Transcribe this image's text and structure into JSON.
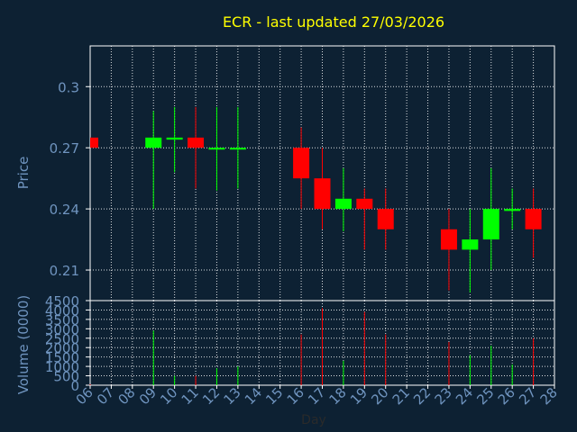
{
  "chart_data": {
    "type": "candlestick",
    "title": "ECR - last updated 27/03/2026",
    "xlabel": "Day",
    "price_panel": {
      "ylabel": "Price",
      "ylim": [
        0.195,
        0.32
      ],
      "yticks": [
        0.21,
        0.24,
        0.27,
        0.3
      ],
      "ytick_labels": [
        "0.21",
        "0.24",
        "0.27",
        "0.3"
      ]
    },
    "volume_panel": {
      "ylabel": "Volume (0000)",
      "ylim": [
        0,
        4500
      ],
      "yticks": [
        0,
        500,
        1000,
        1500,
        2000,
        2500,
        3000,
        3500,
        4000,
        4500
      ],
      "ytick_labels": [
        "0",
        "500",
        "1000",
        "1500",
        "2000",
        "2500",
        "3000",
        "3500",
        "4000",
        "4500"
      ]
    },
    "x_ticks": [
      "06",
      "07",
      "08",
      "09",
      "10",
      "11",
      "12",
      "13",
      "14",
      "15",
      "16",
      "17",
      "18",
      "19",
      "20",
      "21",
      "22",
      "23",
      "24",
      "25",
      "26",
      "27",
      "28"
    ],
    "grid": true,
    "colors": {
      "up": "#00ff00",
      "down": "#ff0000",
      "title": "#ffff00",
      "axis_text": "#6f94bf",
      "background": "#0d2133"
    },
    "candles": [
      {
        "day": "06",
        "open": 0.275,
        "high": 0.275,
        "low": 0.27,
        "close": 0.27,
        "volume": 50
      },
      {
        "day": "09",
        "open": 0.27,
        "high": 0.288,
        "low": 0.24,
        "close": 0.275,
        "volume": 2900
      },
      {
        "day": "10",
        "open": 0.274,
        "high": 0.29,
        "low": 0.258,
        "close": 0.275,
        "volume": 500
      },
      {
        "day": "11",
        "open": 0.275,
        "high": 0.29,
        "low": 0.25,
        "close": 0.27,
        "volume": 500
      },
      {
        "day": "12",
        "open": 0.27,
        "high": 0.29,
        "low": 0.249,
        "close": 0.27,
        "volume": 900
      },
      {
        "day": "13",
        "open": 0.27,
        "high": 0.29,
        "low": 0.25,
        "close": 0.27,
        "volume": 1000
      },
      {
        "day": "16",
        "open": 0.27,
        "high": 0.28,
        "low": 0.24,
        "close": 0.255,
        "volume": 2700
      },
      {
        "day": "17",
        "open": 0.255,
        "high": 0.27,
        "low": 0.23,
        "close": 0.24,
        "volume": 4100
      },
      {
        "day": "18",
        "open": 0.24,
        "high": 0.26,
        "low": 0.229,
        "close": 0.245,
        "volume": 1300
      },
      {
        "day": "19",
        "open": 0.245,
        "high": 0.25,
        "low": 0.22,
        "close": 0.24,
        "volume": 3900
      },
      {
        "day": "20",
        "open": 0.24,
        "high": 0.25,
        "low": 0.22,
        "close": 0.23,
        "volume": 2700
      },
      {
        "day": "23",
        "open": 0.23,
        "high": 0.24,
        "low": 0.2,
        "close": 0.22,
        "volume": 2300
      },
      {
        "day": "24",
        "open": 0.22,
        "high": 0.24,
        "low": 0.199,
        "close": 0.225,
        "volume": 1600
      },
      {
        "day": "25",
        "open": 0.225,
        "high": 0.26,
        "low": 0.21,
        "close": 0.24,
        "volume": 2100
      },
      {
        "day": "26",
        "open": 0.239,
        "high": 0.25,
        "low": 0.23,
        "close": 0.24,
        "volume": 1100
      },
      {
        "day": "27",
        "open": 0.24,
        "high": 0.25,
        "low": 0.216,
        "close": 0.23,
        "volume": 2500
      }
    ]
  }
}
